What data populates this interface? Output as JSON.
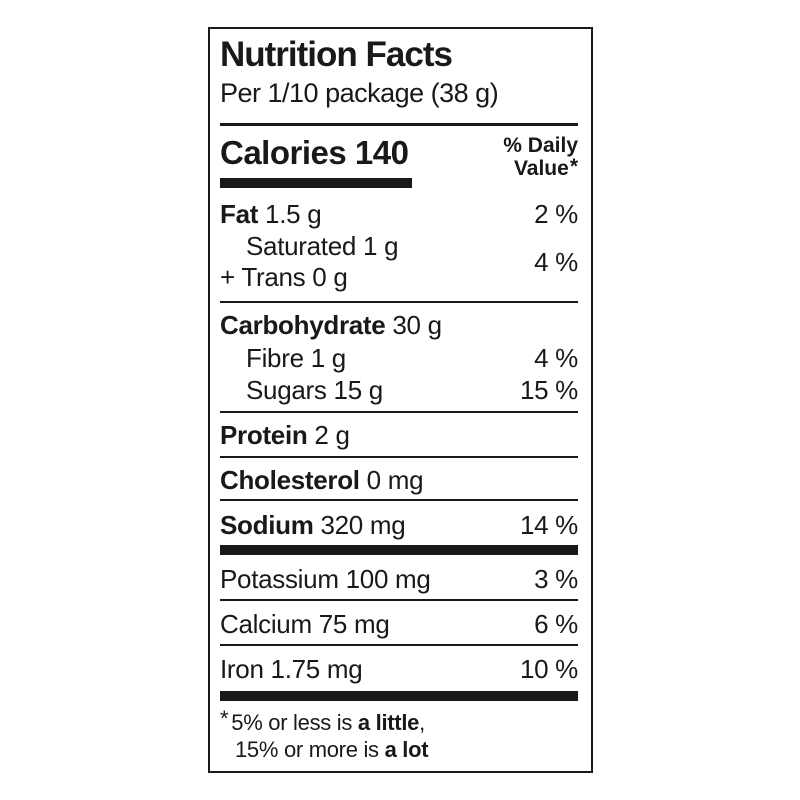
{
  "colors": {
    "text": "#191919",
    "border": "#191919",
    "background": "#ffffff"
  },
  "label": {
    "title": "Nutrition Facts",
    "serving": "Per 1/10 package (38 g)",
    "calories": {
      "label": "Calories",
      "value": "140"
    },
    "daily_value_header": {
      "line1": "% Daily",
      "line2": "Value",
      "asterisk": "*"
    },
    "nutrients": {
      "fat": {
        "name": "Fat",
        "amount": "1.5 g",
        "daily_value": "2 %"
      },
      "saturated": {
        "name": "Saturated",
        "amount": "1 g"
      },
      "trans": {
        "prefix": "+",
        "name": "Trans",
        "amount": "0 g"
      },
      "saturated_trans_daily_value": "4 %",
      "carbohydrate": {
        "name": "Carbohydrate",
        "amount": "30 g"
      },
      "fibre": {
        "name": "Fibre",
        "amount": "1 g",
        "daily_value": "4 %"
      },
      "sugars": {
        "name": "Sugars",
        "amount": "15 g",
        "daily_value": "15 %"
      },
      "protein": {
        "name": "Protein",
        "amount": "2 g"
      },
      "cholesterol": {
        "name": "Cholesterol",
        "amount": "0 mg"
      },
      "sodium": {
        "name": "Sodium",
        "amount": "320 mg",
        "daily_value": "14 %"
      },
      "potassium": {
        "name": "Potassium",
        "amount": "100 mg",
        "daily_value": "3 %"
      },
      "calcium": {
        "name": "Calcium",
        "amount": "75 mg",
        "daily_value": "6 %"
      },
      "iron": {
        "name": "Iron",
        "amount": "1.75 mg",
        "daily_value": "10 %"
      }
    },
    "footnote": {
      "asterisk": "*",
      "line1_text": "5% or less is ",
      "line1_bold": "a little",
      "line1_suffix": ",",
      "line2_text": "15% or more is ",
      "line2_bold": "a lot"
    }
  }
}
